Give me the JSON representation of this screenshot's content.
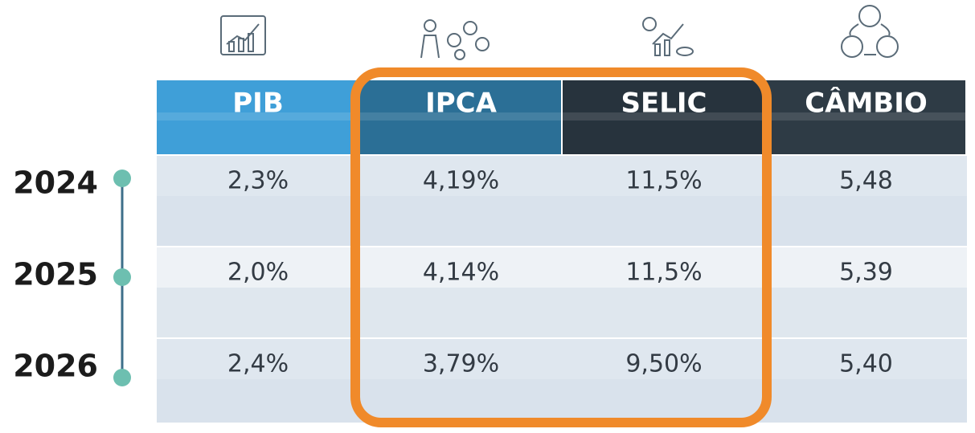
{
  "table": {
    "headers": [
      "PIB",
      "IPCA",
      "SELIC",
      "CÂMBIO"
    ],
    "rows": [
      {
        "year": "2024",
        "cells": [
          "2,3%",
          "4,19%",
          "11,5%",
          "5,48"
        ]
      },
      {
        "year": "2025",
        "cells": [
          "2,0%",
          "4,14%",
          "11,5%",
          "5,39"
        ]
      },
      {
        "year": "2026",
        "cells": [
          "2,4%",
          "3,79%",
          "9,50%",
          "5,40"
        ]
      }
    ]
  }
}
